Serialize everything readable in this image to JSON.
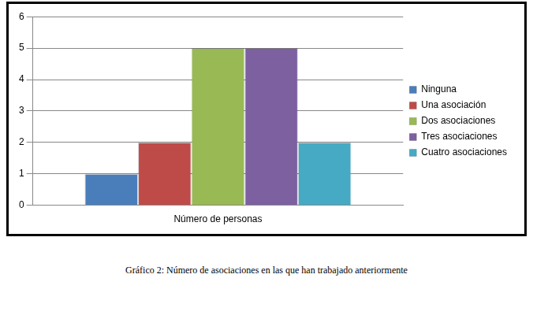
{
  "chart_data": {
    "type": "bar",
    "caption": "Gráfico 2: Número de asociaciones en las que han trabajado anteriormente",
    "categories": [
      "Número de personas"
    ],
    "series": [
      {
        "name": "Ninguna",
        "color": "#4a7ebb",
        "values": [
          1
        ]
      },
      {
        "name": "Una asociación",
        "color": "#be4b48",
        "values": [
          2
        ]
      },
      {
        "name": "Dos asociaciones",
        "color": "#98b954",
        "values": [
          5
        ]
      },
      {
        "name": "Tres asociaciones",
        "color": "#7d60a0",
        "values": [
          5
        ]
      },
      {
        "name": "Cuatro asociaciones",
        "color": "#46aac5",
        "values": [
          2
        ]
      }
    ],
    "ylim": [
      0,
      6
    ],
    "yticks": [
      0,
      1,
      2,
      3,
      4,
      5,
      6
    ],
    "grid": true,
    "legend": "right"
  }
}
